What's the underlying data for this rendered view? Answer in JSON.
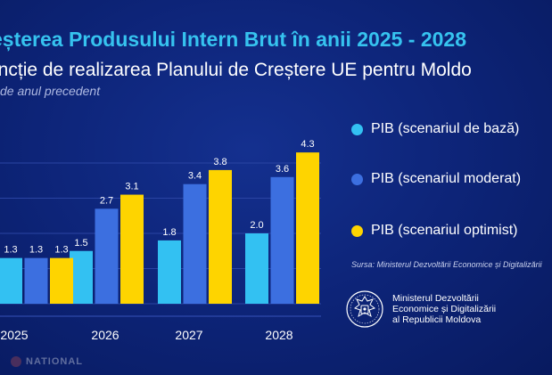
{
  "header": {
    "title": "eșterea Produsului Intern Brut în anii 2025 - 2028",
    "subtitle": "uncție de realizarea Planului de Creștere UE pentru Moldo",
    "unit_note": "de anul precedent"
  },
  "chart_data": {
    "type": "bar",
    "categories": [
      "2025",
      "2026",
      "2027",
      "2028"
    ],
    "series": [
      {
        "name": "PIB (scenariul de bază)",
        "values": [
          1.3,
          1.5,
          1.8,
          2.0
        ],
        "color": "#33c1f2"
      },
      {
        "name": "PIB (scenariul moderat)",
        "values": [
          1.3,
          2.7,
          3.4,
          3.6
        ],
        "color": "#3c6fe0"
      },
      {
        "name": "PIB (scenariul optimist)",
        "values": [
          1.3,
          3.1,
          3.8,
          4.3
        ],
        "color": "#fed400"
      }
    ],
    "data_labels": [
      [
        "1.3",
        "1.5",
        "1.8",
        "2.0"
      ],
      [
        "1.3",
        "2.7",
        "3.4",
        "3.6"
      ],
      [
        "1.3",
        "3.1",
        "3.8",
        "4.3"
      ]
    ],
    "ylim": [
      0,
      4.5
    ],
    "grid": true,
    "legend_position": "right"
  },
  "legend": [
    {
      "label": "PIB (scenariul de bază)",
      "color": "#33c1f2"
    },
    {
      "label": "PIB (scenariul moderat)",
      "color": "#3c6fe0"
    },
    {
      "label": "PIB (scenariul optimist)",
      "color": "#fed400"
    }
  ],
  "source": "Sursa: Ministerul Dezvoltării Economice și Digitalizării",
  "ministry": {
    "line1": "Ministerul Dezvoltării",
    "line2": "Economice și Digitalizării",
    "line3": "al Republicii Moldova",
    "crest_icon": "moldova-coat-of-arms-icon"
  },
  "watermark": {
    "text": "NATIONAL",
    "icon": "national-logo-icon"
  }
}
